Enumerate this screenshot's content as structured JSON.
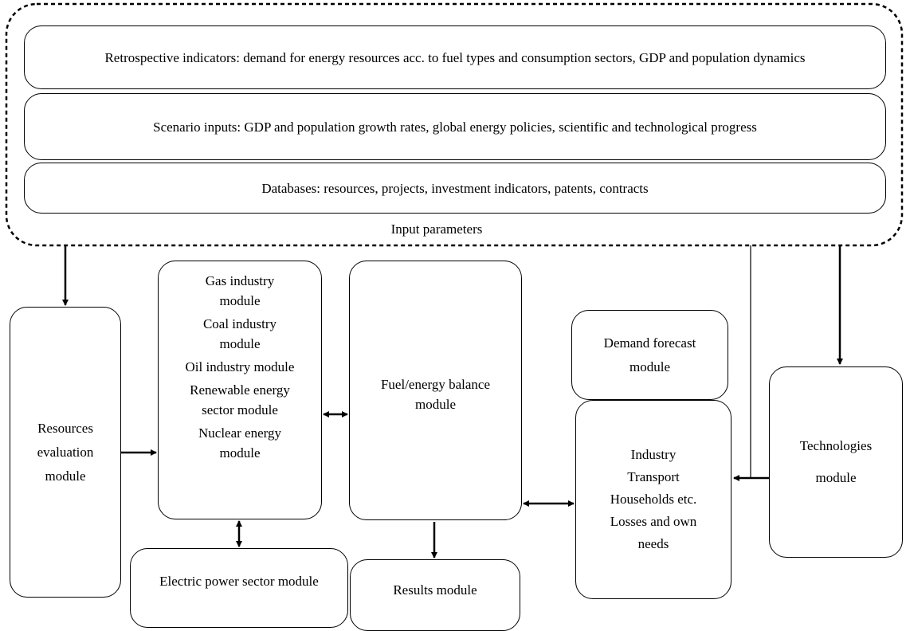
{
  "input_parameters": {
    "label": "Input parameters",
    "items": [
      "Retrospective indicators: demand for energy resources acc. to fuel types and consumption sectors, GDP and population dynamics",
      "Scenario inputs: GDP and population growth rates, global energy policies, scientific and technological progress",
      "Databases: resources, projects, investment indicators, patents, contracts"
    ]
  },
  "modules": {
    "resources": "Resources evaluation module",
    "industries": [
      "Gas industry module",
      "Coal industry module",
      "Oil industry module",
      "Renewable energy sector module",
      "Nuclear energy module"
    ],
    "balance": "Fuel/energy balance module",
    "demand": "Demand forecast module",
    "sectors": [
      "Industry",
      "Transport",
      "Households etc.",
      "Losses and own needs"
    ],
    "technologies": "Technologies module",
    "electric": "Electric power sector module",
    "results": "Results module"
  }
}
